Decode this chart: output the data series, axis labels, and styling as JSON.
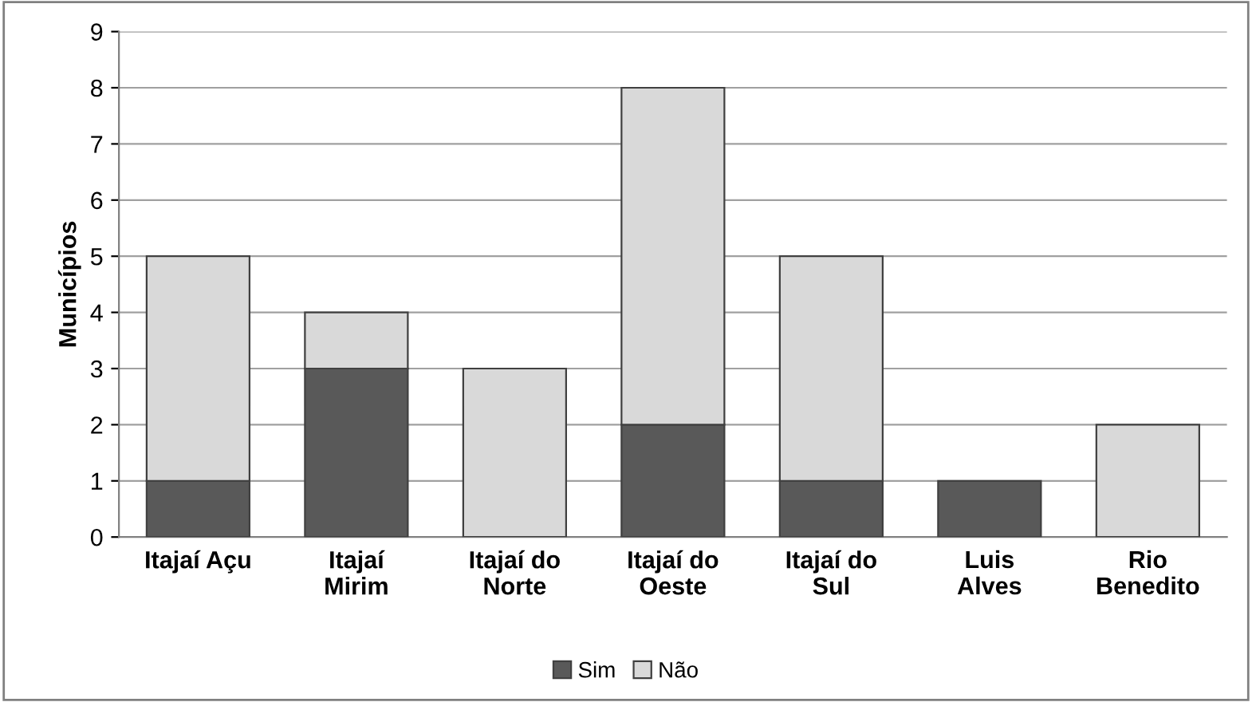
{
  "chart_data": {
    "type": "bar",
    "stacked": true,
    "ylabel": "Municípios",
    "categories": [
      "Itajaí Açu",
      "Itajaí\nMirim",
      "Itajaí do\nNorte",
      "Itajaí do\nOeste",
      "Itajaí do\nSul",
      "Luis\nAlves",
      "Rio\nBenedito"
    ],
    "series": [
      {
        "name": "Sim",
        "color": "#595959",
        "values": [
          1,
          3,
          0,
          2,
          1,
          1,
          0
        ]
      },
      {
        "name": "Não",
        "color": "#d9d9d9",
        "values": [
          4,
          1,
          3,
          6,
          4,
          0,
          2
        ]
      }
    ],
    "ylim": [
      0,
      9
    ],
    "yticks": [
      0,
      1,
      2,
      3,
      4,
      5,
      6,
      7,
      8,
      9
    ],
    "grid": "y",
    "legend": "bottom"
  }
}
